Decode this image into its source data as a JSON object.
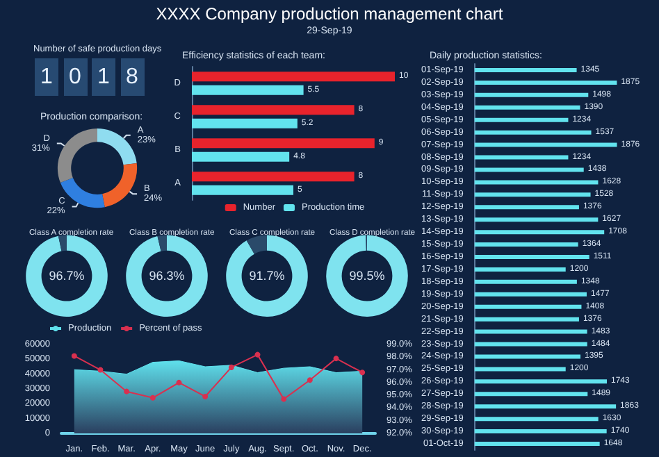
{
  "chart_data": [
    {
      "type": "other",
      "title": "XXXX Company production management chart",
      "subtitle": "29-Sep-19"
    },
    {
      "type": "other",
      "title": "Number of safe production days",
      "annotations": [
        "1",
        "0",
        "1",
        "8"
      ]
    },
    {
      "type": "donut",
      "title": "Production comparison:",
      "categories": [
        "A",
        "B",
        "C",
        "D"
      ],
      "values": [
        23,
        24,
        22,
        31
      ],
      "colors": [
        "#8fdcf0",
        "#f0622a",
        "#2f7fe0",
        "#8c8c8c"
      ],
      "value_labels": [
        "23%",
        "24%",
        "22%",
        "31%"
      ]
    },
    {
      "type": "bar",
      "title": "Efficiency statistics of each team:",
      "orientation": "horizontal",
      "categories": [
        "D",
        "C",
        "B",
        "A"
      ],
      "series": [
        {
          "name": "Number",
          "color": "#e8232c",
          "values": [
            10,
            8,
            9,
            8
          ]
        },
        {
          "name": "Production time",
          "color": "#62e3ee",
          "values": [
            5.5,
            5.2,
            4.8,
            5
          ]
        }
      ],
      "data_labels": true,
      "legend": "bottom",
      "tick_labels": "y"
    },
    {
      "type": "donut",
      "title": "Class A completion rate",
      "categories": [
        null,
        null
      ],
      "values": [
        96.7,
        3.3
      ],
      "colors": [
        "#7fe3ef",
        "#2a4a6a"
      ],
      "value_labels": [
        "96.7%",
        null
      ]
    },
    {
      "type": "donut",
      "title": "Class B completion rate",
      "categories": [
        null,
        null
      ],
      "values": [
        96.3,
        3.7
      ],
      "colors": [
        "#7fe3ef",
        "#2a4a6a"
      ],
      "value_labels": [
        "96.3%",
        null
      ]
    },
    {
      "type": "donut",
      "title": "Class C completion rate",
      "categories": [
        null,
        null
      ],
      "values": [
        91.7,
        8.3
      ],
      "colors": [
        "#7fe3ef",
        "#2a4a6a"
      ],
      "value_labels": [
        "91.7%",
        null
      ]
    },
    {
      "type": "donut",
      "title": "Class D completion rate",
      "categories": [
        null,
        null
      ],
      "values": [
        99.5,
        0.5
      ],
      "colors": [
        "#7fe3ef",
        "#2a4a6a"
      ],
      "value_labels": [
        "99.5%",
        null
      ]
    },
    {
      "type": "area",
      "categories": [
        "Jan.",
        "Feb.",
        "Mar.",
        "Apr.",
        "May",
        "June",
        "July",
        "Aug.",
        "Sept.",
        "Oct.",
        "Nov.",
        "Dec."
      ],
      "series": [
        {
          "name": "Production",
          "type": "area",
          "color": "#5fe0ec",
          "values": [
            43000,
            42000,
            40000,
            48000,
            49000,
            45000,
            46000,
            41000,
            44000,
            45000,
            41000,
            42000
          ]
        },
        {
          "name": "Percent of pass",
          "type": "line",
          "axis": "y2",
          "color": "#d9304f",
          "marker": "circle",
          "values": [
            98.1,
            97.0,
            95.3,
            94.8,
            96.0,
            94.9,
            97.2,
            98.2,
            94.7,
            96.2,
            97.9,
            96.8
          ]
        }
      ],
      "ylim": [
        0,
        60000
      ],
      "yticks": [
        0,
        10000,
        20000,
        30000,
        40000,
        50000,
        60000
      ],
      "y2lim": [
        92,
        99
      ],
      "y2ticks": [
        {
          "value": 92,
          "label": "92.0%"
        },
        {
          "value": 93,
          "label": "93.0%"
        },
        {
          "value": 94,
          "label": "94.0%"
        },
        {
          "value": 95,
          "label": "95.0%"
        },
        {
          "value": 96,
          "label": "96.0%"
        },
        {
          "value": 97,
          "label": "97.0%"
        },
        {
          "value": 98,
          "label": "98.0%"
        },
        {
          "value": 99,
          "label": "99.0%"
        }
      ],
      "legend": "top left"
    },
    {
      "type": "bar",
      "title": "Daily production statistics:",
      "orientation": "horizontal",
      "categories": [
        "01-Sep-19",
        "02-Sep-19",
        "03-Sep-19",
        "04-Sep-19",
        "05-Sep-19",
        "06-Sep-19",
        "07-Sep-19",
        "08-Sep-19",
        "09-Sep-19",
        "10-Sep-19",
        "11-Sep-19",
        "12-Sep-19",
        "13-Sep-19",
        "14-Sep-19",
        "15-Sep-19",
        "16-Sep-19",
        "17-Sep-19",
        "18-Sep-19",
        "19-Sep-19",
        "20-Sep-19",
        "21-Sep-19",
        "22-Sep-19",
        "23-Sep-19",
        "24-Sep-19",
        "25-Sep-19",
        "26-Sep-19",
        "27-Sep-19",
        "28-Sep-19",
        "29-Sep-19",
        "30-Sep-19",
        "01-Oct-19"
      ],
      "values": [
        1345,
        1875,
        1498,
        1390,
        1234,
        1537,
        1876,
        1234,
        1438,
        1628,
        1528,
        1376,
        1627,
        1708,
        1364,
        1511,
        1200,
        1348,
        1477,
        1408,
        1376,
        1483,
        1484,
        1395,
        1200,
        1743,
        1489,
        1863,
        1630,
        1740,
        1648
      ],
      "color": "#62e3ee",
      "data_labels": true,
      "tick_labels": "y"
    }
  ]
}
